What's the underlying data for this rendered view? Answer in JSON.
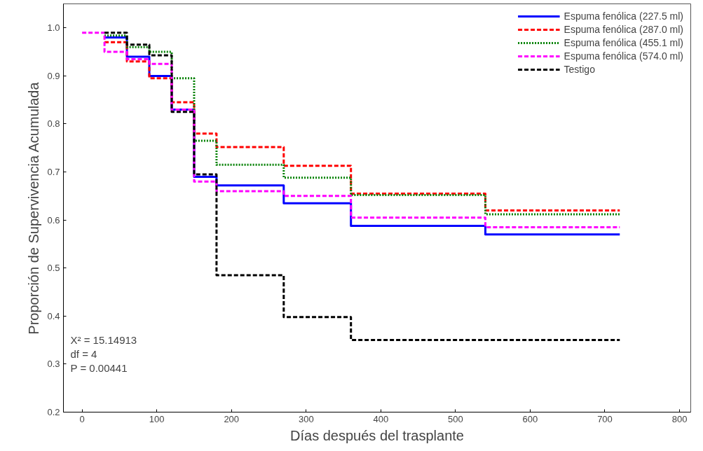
{
  "chart_data": {
    "type": "step",
    "xlabel": "Días después del trasplante",
    "ylabel": "Proporción de Supervivencia Acumulada",
    "x": [
      0,
      30,
      60,
      90,
      120,
      150,
      180,
      270,
      360,
      540,
      720
    ],
    "series": [
      {
        "name": "Espuma fenólica (227.5 ml)",
        "color": "#0000ff",
        "line_style": "solid",
        "values": [
          null,
          0.98,
          0.94,
          0.9,
          0.83,
          0.69,
          0.672,
          0.635,
          0.588,
          0.57,
          0.57
        ]
      },
      {
        "name": "Espuma fenólica (287.0 ml)",
        "color": "#ff0000",
        "line_style": "dashed",
        "values": [
          null,
          0.97,
          0.93,
          0.895,
          0.845,
          0.78,
          0.752,
          0.713,
          0.655,
          0.62,
          0.62
        ]
      },
      {
        "name": "Espuma fenólica (455.1 ml)",
        "color": "#008000",
        "line_style": "dotted",
        "values": [
          null,
          0.984,
          0.96,
          0.95,
          0.895,
          0.765,
          0.715,
          0.688,
          0.652,
          0.612,
          0.612
        ]
      },
      {
        "name": "Espuma fenólica (574.0 ml)",
        "color": "#ff00ff",
        "line_style": "dashed",
        "values": [
          0.99,
          0.95,
          0.935,
          0.925,
          0.83,
          0.68,
          0.66,
          0.65,
          0.605,
          0.585,
          0.585
        ]
      },
      {
        "name": "Testigo",
        "color": "#000000",
        "line_style": "dashed",
        "values": [
          null,
          0.99,
          0.965,
          0.943,
          0.825,
          0.695,
          0.485,
          0.398,
          0.35,
          0.35,
          0.35
        ]
      }
    ],
    "xlim": [
      -25,
      815
    ],
    "ylim": [
      0.2,
      1.05
    ],
    "xticks": [
      0,
      100,
      200,
      300,
      400,
      500,
      600,
      700,
      800
    ],
    "yticks": [
      {
        "value": 0.2,
        "label": "0.2"
      },
      {
        "value": 0.3,
        "label": "0.3"
      },
      {
        "value": 0.4,
        "label": "0.4"
      },
      {
        "value": 0.5,
        "label": "0.5"
      },
      {
        "value": 0.6,
        "label": "0.6"
      },
      {
        "value": 0.7,
        "label": "0.7"
      },
      {
        "value": 0.8,
        "label": "0.8"
      },
      {
        "value": 0.9,
        "label": "0.9"
      },
      {
        "value": 1.0,
        "label": "1.0"
      }
    ],
    "annotations": [
      "X² = 15.14913",
      "df = 4",
      "P = 0.00441"
    ],
    "legend": "top right",
    "grid": false,
    "marker": "none"
  }
}
